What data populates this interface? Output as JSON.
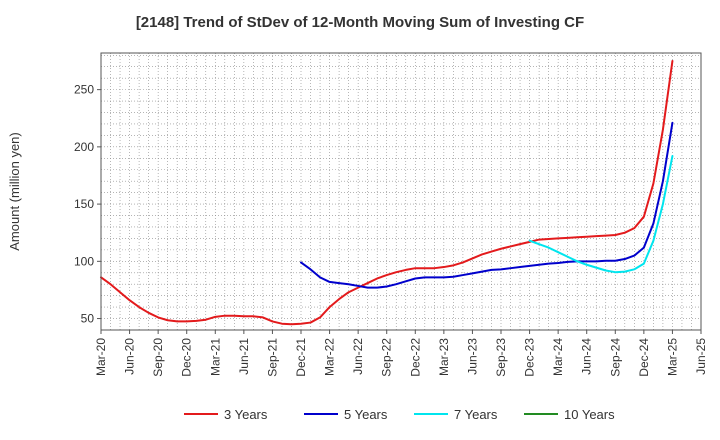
{
  "chart_data": {
    "type": "line",
    "title": "[2148]  Trend of StDev of 12-Month Moving Sum of Investing CF",
    "xlabel": "",
    "ylabel": "Amount (million yen)",
    "ylim": [
      40,
      282
    ],
    "yticks": [
      50,
      100,
      150,
      200,
      250
    ],
    "xlim": [
      "2020-03",
      "2025-06"
    ],
    "xticks": [
      "Mar-20",
      "Jun-20",
      "Sep-20",
      "Dec-20",
      "Mar-21",
      "Jun-21",
      "Sep-21",
      "Dec-21",
      "Mar-22",
      "Jun-22",
      "Sep-22",
      "Dec-22",
      "Mar-23",
      "Jun-23",
      "Sep-23",
      "Dec-23",
      "Mar-24",
      "Jun-24",
      "Sep-24",
      "Dec-24",
      "Mar-25",
      "Jun-25"
    ],
    "grid": true,
    "legend": "bottom",
    "series": [
      {
        "name": "3 Years",
        "color": "#e31a1c",
        "points": [
          [
            "2020-03",
            86
          ],
          [
            "2020-04",
            80
          ],
          [
            "2020-05",
            73
          ],
          [
            "2020-06",
            66
          ],
          [
            "2020-07",
            60
          ],
          [
            "2020-08",
            55
          ],
          [
            "2020-09",
            51
          ],
          [
            "2020-10",
            48.5
          ],
          [
            "2020-11",
            47.5
          ],
          [
            "2020-12",
            47.5
          ],
          [
            "2021-01",
            48
          ],
          [
            "2021-02",
            49
          ],
          [
            "2021-03",
            51.5
          ],
          [
            "2021-04",
            52.5
          ],
          [
            "2021-05",
            52.5
          ],
          [
            "2021-06",
            52
          ],
          [
            "2021-07",
            52
          ],
          [
            "2021-08",
            51
          ],
          [
            "2021-09",
            47.5
          ],
          [
            "2021-10",
            45.5
          ],
          [
            "2021-11",
            45
          ],
          [
            "2021-12",
            45.5
          ],
          [
            "2022-01",
            46.5
          ],
          [
            "2022-02",
            51
          ],
          [
            "2022-03",
            60
          ],
          [
            "2022-04",
            67
          ],
          [
            "2022-05",
            73
          ],
          [
            "2022-06",
            77
          ],
          [
            "2022-07",
            81
          ],
          [
            "2022-08",
            85
          ],
          [
            "2022-09",
            88
          ],
          [
            "2022-10",
            90.5
          ],
          [
            "2022-11",
            92.5
          ],
          [
            "2022-12",
            94
          ],
          [
            "2023-01",
            94
          ],
          [
            "2023-02",
            94
          ],
          [
            "2023-03",
            95
          ],
          [
            "2023-04",
            96.5
          ],
          [
            "2023-05",
            99
          ],
          [
            "2023-06",
            102.5
          ],
          [
            "2023-07",
            106
          ],
          [
            "2023-08",
            108.5
          ],
          [
            "2023-09",
            111
          ],
          [
            "2023-10",
            113
          ],
          [
            "2023-11",
            115
          ],
          [
            "2023-12",
            117
          ],
          [
            "2024-01",
            119
          ],
          [
            "2024-02",
            119.5
          ],
          [
            "2024-03",
            120
          ],
          [
            "2024-04",
            120.5
          ],
          [
            "2024-05",
            121
          ],
          [
            "2024-06",
            121.5
          ],
          [
            "2024-07",
            122
          ],
          [
            "2024-08",
            122.5
          ],
          [
            "2024-09",
            123
          ],
          [
            "2024-10",
            125
          ],
          [
            "2024-11",
            129
          ],
          [
            "2024-12",
            139
          ],
          [
            "2025-01",
            168
          ],
          [
            "2025-02",
            215
          ],
          [
            "2025-03",
            275
          ]
        ]
      },
      {
        "name": "5 Years",
        "color": "#0000cc",
        "points": [
          [
            "2021-12",
            99
          ],
          [
            "2022-01",
            93
          ],
          [
            "2022-02",
            86
          ],
          [
            "2022-03",
            82
          ],
          [
            "2022-04",
            81
          ],
          [
            "2022-05",
            80
          ],
          [
            "2022-06",
            78.5
          ],
          [
            "2022-07",
            77
          ],
          [
            "2022-08",
            77
          ],
          [
            "2022-09",
            78
          ],
          [
            "2022-10",
            80
          ],
          [
            "2022-11",
            82.5
          ],
          [
            "2022-12",
            85
          ],
          [
            "2023-01",
            86
          ],
          [
            "2023-02",
            86
          ],
          [
            "2023-03",
            86
          ],
          [
            "2023-04",
            86.5
          ],
          [
            "2023-05",
            88
          ],
          [
            "2023-06",
            89.5
          ],
          [
            "2023-07",
            91
          ],
          [
            "2023-08",
            92.5
          ],
          [
            "2023-09",
            93
          ],
          [
            "2023-10",
            94
          ],
          [
            "2023-11",
            95
          ],
          [
            "2023-12",
            96
          ],
          [
            "2024-01",
            97
          ],
          [
            "2024-02",
            98
          ],
          [
            "2024-03",
            98.5
          ],
          [
            "2024-04",
            99.5
          ],
          [
            "2024-05",
            100
          ],
          [
            "2024-06",
            100
          ],
          [
            "2024-07",
            100
          ],
          [
            "2024-08",
            100.5
          ],
          [
            "2024-09",
            100.5
          ],
          [
            "2024-10",
            102
          ],
          [
            "2024-11",
            105
          ],
          [
            "2024-12",
            112
          ],
          [
            "2025-01",
            133
          ],
          [
            "2025-02",
            170
          ],
          [
            "2025-03",
            221
          ]
        ]
      },
      {
        "name": "7 Years",
        "color": "#00e5ee",
        "points": [
          [
            "2023-12",
            118
          ],
          [
            "2024-01",
            115
          ],
          [
            "2024-02",
            112
          ],
          [
            "2024-03",
            108
          ],
          [
            "2024-04",
            104
          ],
          [
            "2024-05",
            100
          ],
          [
            "2024-06",
            97
          ],
          [
            "2024-07",
            94.5
          ],
          [
            "2024-08",
            92
          ],
          [
            "2024-09",
            90.5
          ],
          [
            "2024-10",
            91
          ],
          [
            "2024-11",
            93
          ],
          [
            "2024-12",
            98
          ],
          [
            "2025-01",
            118
          ],
          [
            "2025-02",
            150
          ],
          [
            "2025-03",
            192
          ]
        ]
      },
      {
        "name": "10 Years",
        "color": "#228b22",
        "points": []
      }
    ]
  }
}
